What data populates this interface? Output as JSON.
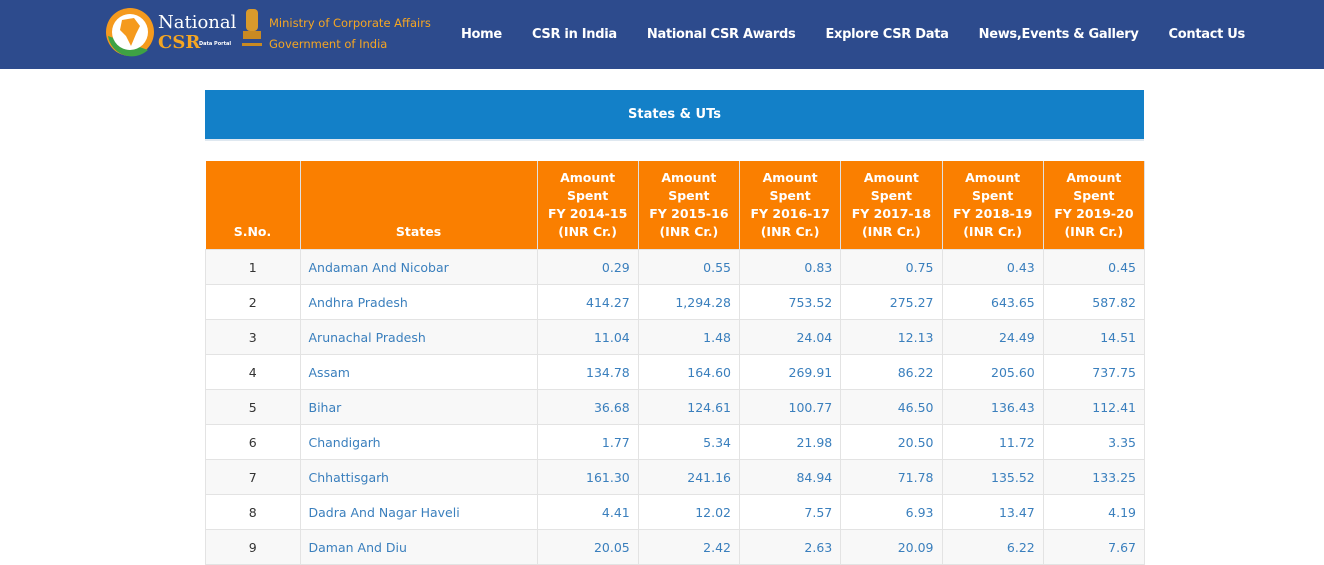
{
  "header": {
    "logo": {
      "national": "National",
      "csr": "CSR",
      "portal": "Data Portal",
      "ministry": "Ministry of Corporate Affairs",
      "government": "Government of India"
    },
    "nav": [
      "Home",
      "CSR in India",
      "National CSR Awards",
      "Explore CSR Data",
      "News,Events & Gallery",
      "Contact Us"
    ]
  },
  "banner": {
    "title": "States & UTs"
  },
  "table": {
    "columns": [
      "S.No.",
      "States",
      "Amount\nSpent\nFY 2014-15\n(INR Cr.)",
      "Amount\nSpent\nFY 2015-16\n(INR Cr.)",
      "Amount\nSpent\nFY 2016-17\n(INR Cr.)",
      "Amount\nSpent\nFY 2017-18\n(INR Cr.)",
      "Amount\nSpent\nFY 2018-19\n(INR Cr.)",
      "Amount\nSpent\nFY 2019-20\n(INR Cr.)"
    ],
    "rows": [
      [
        "1",
        "Andaman And Nicobar",
        "0.29",
        "0.55",
        "0.83",
        "0.75",
        "0.43",
        "0.45"
      ],
      [
        "2",
        "Andhra Pradesh",
        "414.27",
        "1,294.28",
        "753.52",
        "275.27",
        "643.65",
        "587.82"
      ],
      [
        "3",
        "Arunachal Pradesh",
        "11.04",
        "1.48",
        "24.04",
        "12.13",
        "24.49",
        "14.51"
      ],
      [
        "4",
        "Assam",
        "134.78",
        "164.60",
        "269.91",
        "86.22",
        "205.60",
        "737.75"
      ],
      [
        "5",
        "Bihar",
        "36.68",
        "124.61",
        "100.77",
        "46.50",
        "136.43",
        "112.41"
      ],
      [
        "6",
        "Chandigarh",
        "1.77",
        "5.34",
        "21.98",
        "20.50",
        "11.72",
        "3.35"
      ],
      [
        "7",
        "Chhattisgarh",
        "161.30",
        "241.16",
        "84.94",
        "71.78",
        "135.52",
        "133.25"
      ],
      [
        "8",
        "Dadra And Nagar Haveli",
        "4.41",
        "12.02",
        "7.57",
        "6.93",
        "13.47",
        "4.19"
      ],
      [
        "9",
        "Daman And Diu",
        "20.05",
        "2.42",
        "2.63",
        "20.09",
        "6.22",
        "7.67"
      ]
    ]
  }
}
